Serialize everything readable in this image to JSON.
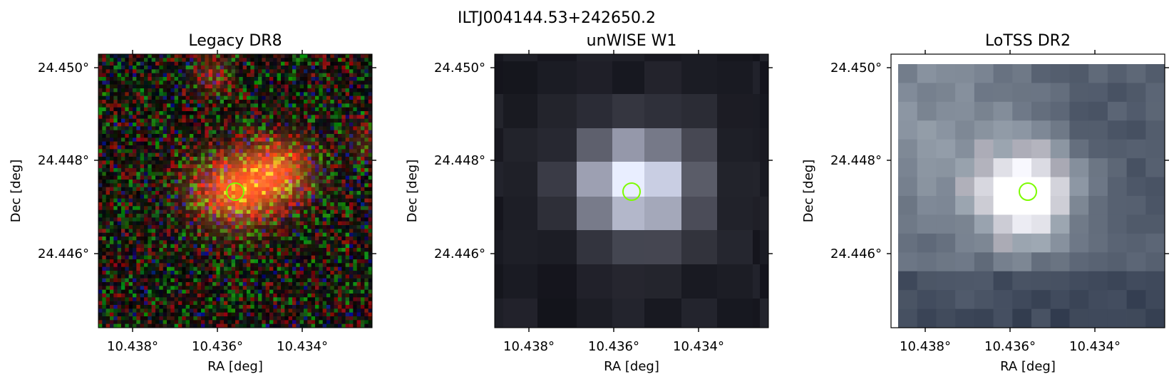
{
  "figure": {
    "source_name": "ILTJ004144.53+242650.2"
  },
  "panels": [
    {
      "title": "Legacy DR8",
      "xlabel": "RA [deg]",
      "ylabel": "Dec [deg]",
      "x_ticks": [
        "10.438°",
        "10.436°",
        "10.434°"
      ],
      "y_ticks": [
        "24.450°",
        "24.448°",
        "24.446°"
      ],
      "image_style": "rgb-noise-with-red-source",
      "has_frame_border": false
    },
    {
      "title": "unWISE W1",
      "xlabel": "RA [deg]",
      "ylabel": "Dec [deg]",
      "x_ticks": [
        "10.438°",
        "10.436°",
        "10.434°"
      ],
      "y_ticks": [
        "24.450°",
        "24.448°",
        "24.446°"
      ],
      "image_style": "grayscale-coarse-pixels",
      "has_frame_border": false
    },
    {
      "title": "LoTSS DR2",
      "xlabel": "RA [deg]",
      "ylabel": "Dec [deg]",
      "x_ticks": [
        "10.438°",
        "10.436°",
        "10.434°"
      ],
      "y_ticks": [
        "24.450°",
        "24.448°",
        "24.446°"
      ],
      "image_style": "bone-colormap-pixels",
      "has_frame_border": true
    }
  ],
  "marker": {
    "shape": "circle",
    "color": "#7CFC00"
  }
}
